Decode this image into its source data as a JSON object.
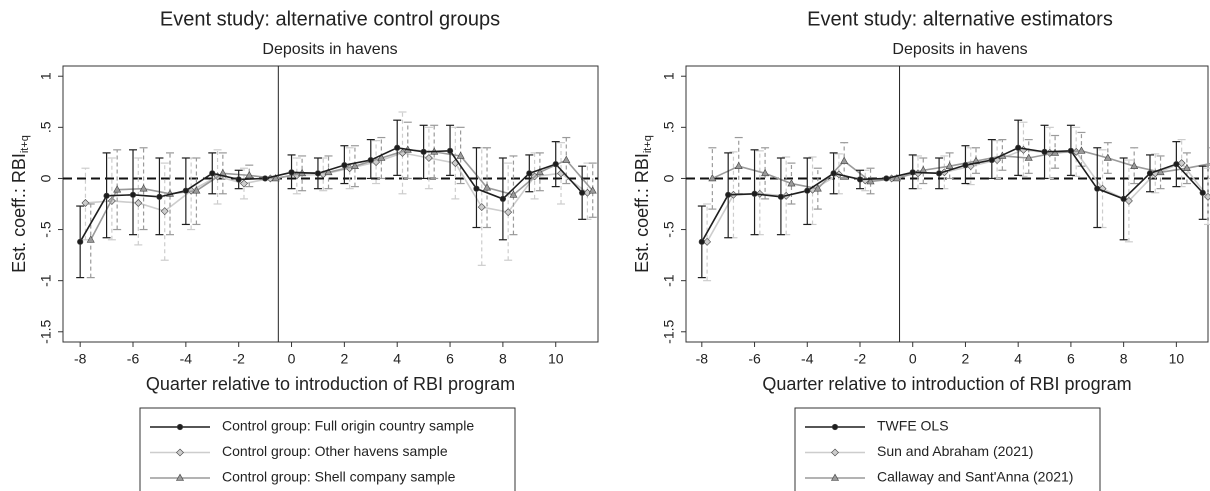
{
  "chart_data": [
    {
      "type": "line",
      "title": "Event study: alternative control groups",
      "subtitle": "Deposits in havens",
      "x_label": "Quarter relative to introduction of RBI program",
      "y_label": "Est. coeff.: RBI",
      "y_label_sub": "it+q",
      "x": [
        -8,
        -7,
        -6,
        -5,
        -4,
        -3,
        -2,
        -1,
        0,
        1,
        2,
        3,
        4,
        5,
        6,
        7,
        8,
        9,
        10,
        11
      ],
      "xlim": [
        -8.65,
        11.6
      ],
      "xticks": [
        -8,
        -6,
        -4,
        -2,
        0,
        2,
        4,
        6,
        8,
        10
      ],
      "ylim": [
        -1.6,
        1.1
      ],
      "yticks": [
        1,
        {
          "value": 0.5,
          "label": ".5"
        },
        0,
        {
          "value": -0.5,
          "label": "-.5"
        },
        -1,
        -1.5
      ],
      "vline": -0.5,
      "hline": 0,
      "series": [
        {
          "name": "Control group: Full origin country sample",
          "color": "#1e1e1e",
          "marker": "circle",
          "ci_style": "solid",
          "values": [
            -0.62,
            -0.17,
            -0.16,
            -0.18,
            -0.12,
            0.05,
            -0.01,
            0,
            0.06,
            0.05,
            0.13,
            0.18,
            0.3,
            0.26,
            0.27,
            -0.1,
            -0.2,
            0.05,
            0.14,
            -0.14
          ],
          "ci_low": [
            -0.97,
            -0.58,
            -0.55,
            -0.55,
            -0.45,
            -0.15,
            -0.1,
            0,
            -0.1,
            -0.1,
            -0.05,
            0,
            0.03,
            0,
            0.03,
            -0.48,
            -0.6,
            -0.13,
            -0.08,
            -0.4
          ],
          "ci_high": [
            -0.27,
            0.25,
            0.28,
            0.2,
            0.2,
            0.25,
            0.08,
            0,
            0.23,
            0.2,
            0.32,
            0.38,
            0.57,
            0.52,
            0.52,
            0.3,
            0.2,
            0.23,
            0.36,
            0.12
          ]
        },
        {
          "name": "Control group: Other havens sample",
          "color": "#cdcdcd",
          "marker": "diamond",
          "ci_style": "dashed",
          "values": [
            -0.24,
            -0.22,
            -0.24,
            -0.32,
            -0.12,
            0.02,
            -0.05,
            0,
            0.03,
            0.04,
            0.1,
            0.16,
            0.25,
            0.2,
            0.15,
            -0.28,
            -0.33,
            0.02,
            0.05,
            -0.14
          ],
          "ci_low": [
            -0.6,
            -0.6,
            -0.65,
            -0.8,
            -0.5,
            -0.25,
            -0.2,
            0,
            -0.15,
            -0.12,
            -0.1,
            -0.05,
            -0.15,
            -0.1,
            -0.2,
            -0.85,
            -0.8,
            -0.2,
            -0.25,
            -0.4
          ],
          "ci_high": [
            0.1,
            0.2,
            0.2,
            0.15,
            0.2,
            0.28,
            0.1,
            0,
            0.2,
            0.2,
            0.3,
            0.37,
            0.65,
            0.5,
            0.5,
            0.3,
            0.15,
            0.25,
            0.35,
            0.15
          ]
        },
        {
          "name": "Control group: Shell company sample",
          "color": "#9a9a9a",
          "marker": "triangle",
          "ci_style": "dashed",
          "values": [
            -0.6,
            -0.11,
            -0.1,
            -0.15,
            -0.12,
            0.05,
            0.03,
            0,
            0.05,
            0.06,
            0.12,
            0.2,
            0.28,
            0.26,
            0.22,
            -0.09,
            -0.16,
            0.06,
            0.18,
            -0.12
          ],
          "ci_low": [
            -0.97,
            -0.5,
            -0.5,
            -0.55,
            -0.45,
            -0.15,
            -0.08,
            0,
            -0.12,
            -0.1,
            -0.08,
            0,
            0,
            0,
            -0.05,
            -0.48,
            -0.55,
            -0.12,
            -0.05,
            -0.38
          ],
          "ci_high": [
            -0.25,
            0.28,
            0.3,
            0.25,
            0.2,
            0.25,
            0.13,
            0,
            0.22,
            0.22,
            0.32,
            0.4,
            0.55,
            0.52,
            0.5,
            0.3,
            0.22,
            0.25,
            0.4,
            0.15
          ]
        }
      ]
    },
    {
      "type": "line",
      "title": "Event study: alternative estimators",
      "subtitle": "Deposits in havens",
      "x_label": "Quarter relative to introduction of RBI program",
      "y_label": "Est. coeff.: RBI",
      "y_label_sub": "it+q",
      "x": [
        -8,
        -7,
        -6,
        -5,
        -4,
        -3,
        -2,
        -1,
        0,
        1,
        2,
        3,
        4,
        5,
        6,
        7,
        8,
        9,
        10,
        11
      ],
      "xlim": [
        -8.6,
        11.2
      ],
      "xticks": [
        -8,
        -6,
        -4,
        -2,
        0,
        2,
        4,
        6,
        8,
        10
      ],
      "ylim": [
        -1.6,
        1.1
      ],
      "yticks": [
        1,
        {
          "value": 0.5,
          "label": ".5"
        },
        0,
        {
          "value": -0.5,
          "label": "-.5"
        },
        -1,
        -1.5
      ],
      "vline": -0.5,
      "hline": 0,
      "series": [
        {
          "name": "TWFE OLS",
          "color": "#1e1e1e",
          "marker": "circle",
          "ci_style": "solid",
          "values": [
            -0.62,
            -0.16,
            -0.15,
            -0.18,
            -0.12,
            0.05,
            -0.01,
            0,
            0.06,
            0.05,
            0.13,
            0.18,
            0.3,
            0.26,
            0.27,
            -0.1,
            -0.2,
            0.05,
            0.14,
            -0.14
          ],
          "ci_low": [
            -0.97,
            -0.58,
            -0.55,
            -0.55,
            -0.45,
            -0.15,
            -0.1,
            0,
            -0.1,
            -0.1,
            -0.05,
            0,
            0.03,
            0,
            0.03,
            -0.48,
            -0.6,
            -0.13,
            -0.08,
            -0.4
          ],
          "ci_high": [
            -0.27,
            0.25,
            0.28,
            0.2,
            0.2,
            0.25,
            0.08,
            0,
            0.23,
            0.2,
            0.32,
            0.38,
            0.57,
            0.52,
            0.52,
            0.3,
            0.2,
            0.23,
            0.36,
            0.12
          ]
        },
        {
          "name": "Sun and Abraham (2021)",
          "color": "#cdcdcd",
          "marker": "diamond",
          "ci_style": "dashed",
          "values": [
            -0.62,
            -0.16,
            -0.15,
            -0.17,
            -0.11,
            0.04,
            -0.02,
            0,
            0.05,
            0.06,
            0.12,
            0.18,
            0.28,
            0.25,
            0.26,
            -0.1,
            -0.22,
            0.05,
            0.15,
            -0.18
          ],
          "ci_low": [
            -1.0,
            -0.58,
            -0.55,
            -0.55,
            -0.45,
            -0.15,
            -0.12,
            0,
            -0.1,
            -0.1,
            -0.06,
            0,
            0.02,
            0,
            0.02,
            -0.48,
            -0.62,
            -0.14,
            -0.08,
            -0.45
          ],
          "ci_high": [
            -0.25,
            0.26,
            0.27,
            0.21,
            0.21,
            0.24,
            0.08,
            0,
            0.22,
            0.22,
            0.3,
            0.37,
            0.55,
            0.5,
            0.5,
            0.28,
            0.18,
            0.24,
            0.38,
            0.1
          ]
        },
        {
          "name": "Callaway and Sant'Anna (2021)",
          "color": "#9a9a9a",
          "marker": "triangle",
          "ci_style": "dashed",
          "values": [
            0.0,
            0.12,
            0.05,
            -0.05,
            -0.1,
            0.17,
            -0.03,
            0,
            0.08,
            0.12,
            0.17,
            0.22,
            0.2,
            0.25,
            0.27,
            0.2,
            0.12,
            0.06,
            0.1,
            0.15
          ],
          "ci_low": [
            -0.3,
            -0.15,
            -0.2,
            -0.25,
            -0.3,
            0,
            -0.15,
            0,
            -0.05,
            0,
            0.05,
            0.08,
            0.05,
            0.1,
            0.12,
            0.05,
            -0.05,
            -0.1,
            -0.05,
            0
          ],
          "ci_high": [
            0.3,
            0.4,
            0.3,
            0.15,
            0.1,
            0.35,
            0.1,
            0,
            0.2,
            0.25,
            0.3,
            0.38,
            0.38,
            0.42,
            0.45,
            0.35,
            0.3,
            0.22,
            0.25,
            0.3
          ]
        }
      ]
    }
  ]
}
